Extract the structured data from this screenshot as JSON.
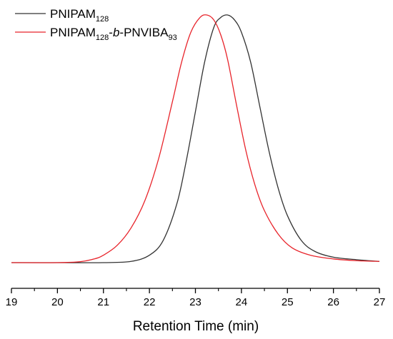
{
  "chart_data": {
    "type": "line",
    "title": "",
    "xlabel": "Retention Time (min)",
    "ylabel": "",
    "xlim": [
      19,
      27
    ],
    "ylim": [
      0,
      1.0
    ],
    "x_ticks": [
      "19",
      "20",
      "21",
      "22",
      "23",
      "24",
      "25",
      "26",
      "27"
    ],
    "y_axis_visible": false,
    "grid": false,
    "legend_placement": "top-left",
    "series": [
      {
        "name": "PNIPAM",
        "name_subscript": "128",
        "color": "#333333",
        "x": [
          19.0,
          20.0,
          21.0,
          21.6,
          22.0,
          22.3,
          22.6,
          22.8,
          23.0,
          23.2,
          23.4,
          23.55,
          23.7,
          23.85,
          24.0,
          24.2,
          24.4,
          24.6,
          24.8,
          25.0,
          25.3,
          25.6,
          26.0,
          26.5,
          27.0
        ],
        "y": [
          0.0,
          0.0,
          0.0,
          0.005,
          0.03,
          0.09,
          0.24,
          0.41,
          0.61,
          0.81,
          0.95,
          0.99,
          1.0,
          0.98,
          0.93,
          0.81,
          0.63,
          0.45,
          0.3,
          0.19,
          0.09,
          0.045,
          0.022,
          0.012,
          0.005
        ]
      },
      {
        "name": "PNIPAM",
        "name_subscript": "128",
        "name_italic": "b",
        "name_suffix": "PNVIBA",
        "name_suffix_subscript": "93",
        "color": "#e8242b",
        "x": [
          19.0,
          20.0,
          20.5,
          20.8,
          21.0,
          21.3,
          21.6,
          21.9,
          22.2,
          22.5,
          22.7,
          22.9,
          23.1,
          23.25,
          23.4,
          23.55,
          23.7,
          23.9,
          24.1,
          24.3,
          24.5,
          24.8,
          25.1,
          25.5,
          26.0,
          26.5,
          27.0
        ],
        "y": [
          0.0,
          0.0,
          0.004,
          0.015,
          0.03,
          0.07,
          0.14,
          0.25,
          0.42,
          0.65,
          0.81,
          0.93,
          0.99,
          1.0,
          0.98,
          0.92,
          0.82,
          0.63,
          0.45,
          0.31,
          0.21,
          0.115,
          0.06,
          0.03,
          0.015,
          0.008,
          0.005
        ]
      }
    ]
  }
}
